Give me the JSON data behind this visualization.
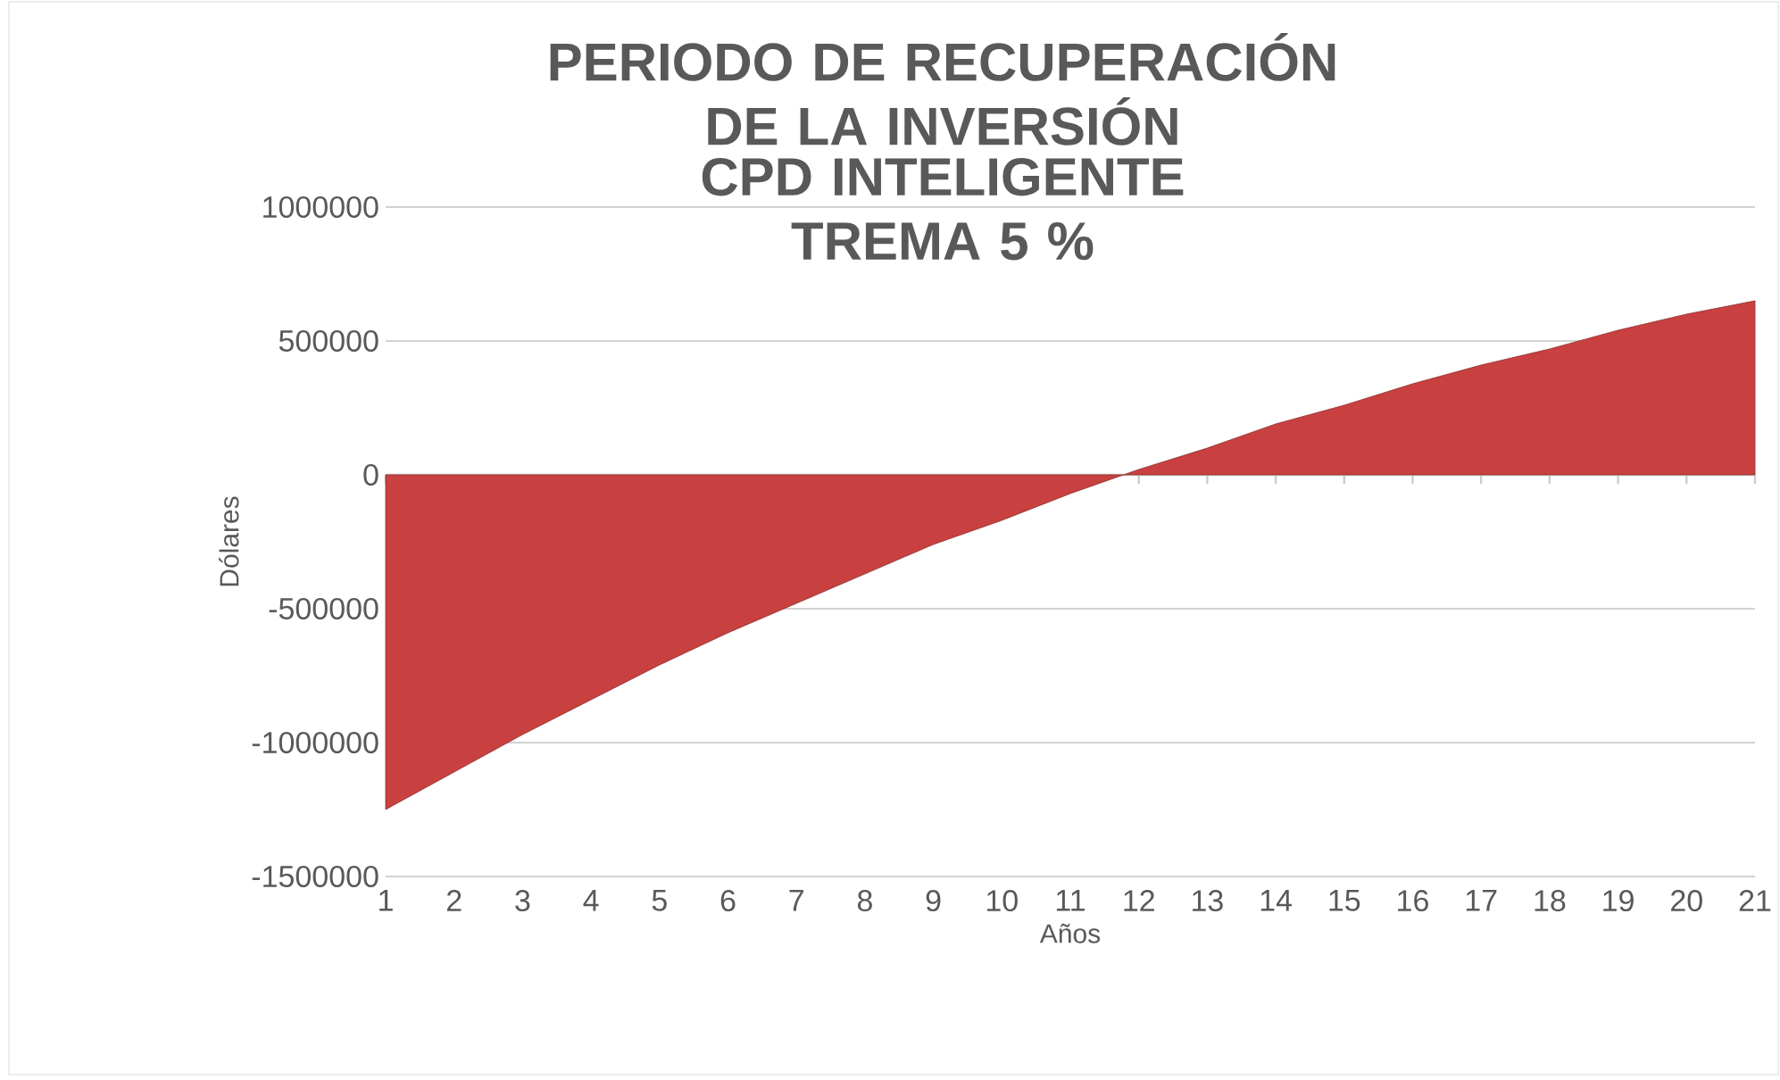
{
  "chart_data": {
    "type": "area",
    "title": "PERIODO DE RECUPERACIÓN DE LA INVERSIÓN",
    "subtitle": "CPD INTELIGENTE TREMA 5 %",
    "xlabel": "Años",
    "ylabel": "Dólares",
    "categories": [
      "1",
      "2",
      "3",
      "4",
      "5",
      "6",
      "7",
      "8",
      "9",
      "10",
      "11",
      "12",
      "13",
      "14",
      "15",
      "16",
      "17",
      "18",
      "19",
      "20",
      "21"
    ],
    "series": [
      {
        "color": "#c8403f",
        "values": [
          -1250000,
          -1110000,
          -970000,
          -840000,
          -710000,
          -590000,
          -480000,
          -370000,
          -260000,
          -170000,
          -70000,
          20000,
          100000,
          190000,
          260000,
          340000,
          410000,
          470000,
          540000,
          600000,
          650000
        ]
      }
    ],
    "ylim": [
      -1500000,
      1000000
    ],
    "yticks": [
      -1500000,
      -1000000,
      -500000,
      0,
      500000,
      1000000
    ],
    "grid": "y"
  }
}
